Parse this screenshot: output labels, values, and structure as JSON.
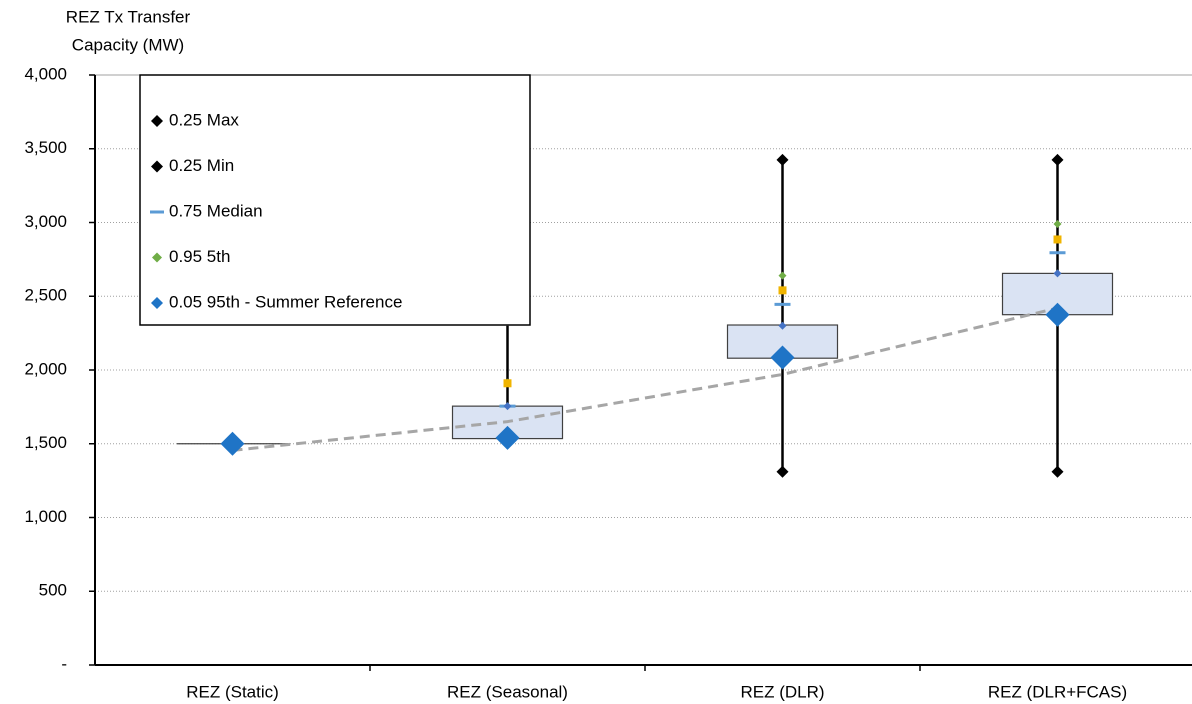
{
  "chart_data": {
    "type": "box",
    "y_label": [
      "REZ Tx Transfer",
      "Capacity (MW)"
    ],
    "categories": [
      "REZ (Static)",
      "REZ (Seasonal)",
      "REZ (DLR)",
      "REZ (DLR+FCAS)"
    ],
    "ylim": [
      0,
      4000
    ],
    "yticks": [
      {
        "value": 0,
        "label": "-"
      },
      500,
      {
        "value": 1000,
        "label": "1,000"
      },
      {
        "value": 1500,
        "label": "1,500"
      },
      {
        "value": 2000,
        "label": "2,000"
      },
      {
        "value": 2500,
        "label": "2,500"
      },
      {
        "value": 3000,
        "label": "3,000"
      },
      {
        "value": 3500,
        "label": "3,500"
      },
      {
        "value": 4000,
        "label": "4,000"
      }
    ],
    "grid": true,
    "box": {
      "color": "#dae3f3",
      "q1": [
        1500,
        1535,
        2080,
        2375
      ],
      "q3": [
        1500,
        1755,
        2305,
        2655
      ],
      "low": [
        1500,
        1535,
        1310,
        1310
      ],
      "high": [
        1500,
        2300,
        3425,
        3425
      ]
    },
    "trend": {
      "color": "#a6a6a6",
      "values": [
        1455,
        1650,
        1970,
        2420
      ]
    },
    "series": [
      {
        "name": "0.25  Max",
        "color": "#000000",
        "marker": "diamond",
        "size": 6,
        "values": [
          null,
          null,
          3425,
          3425
        ]
      },
      {
        "name": "0.25  Min",
        "color": "#000000",
        "marker": "diamond",
        "size": 6,
        "values": [
          null,
          null,
          1310,
          1310
        ]
      },
      {
        "name": "0.75  Median",
        "color": "#5b9bd5",
        "marker": "dash",
        "size": 8,
        "values": [
          null,
          1755,
          2445,
          2795
        ]
      },
      {
        "name": "0.95  5th",
        "color": "#70ad47",
        "marker": "diamond",
        "size": 4,
        "values": [
          null,
          1915,
          2640,
          2990
        ]
      },
      {
        "color": "#f0b400",
        "marker": "square",
        "size": 4,
        "values": [
          null,
          1910,
          2540,
          2885
        ]
      },
      {
        "color": "#4472c4",
        "marker": "diamond",
        "size": 4,
        "values": [
          null,
          1755,
          2300,
          2655
        ]
      },
      {
        "name": "0.05  95th - Summer Reference",
        "color": "#1f74c6",
        "marker": "diamond",
        "size": 12,
        "values": [
          1500,
          1540,
          2085,
          2375
        ]
      }
    ]
  }
}
